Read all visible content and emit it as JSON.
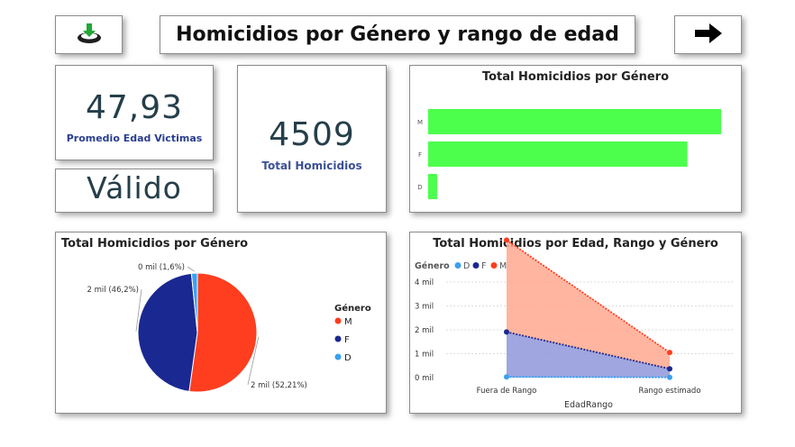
{
  "header": {
    "title": "Homicidios por Género y rango de edad",
    "left_button_icon": "download-icon",
    "right_button_icon": "arrow-right-icon"
  },
  "kpis": {
    "avg_age_value": "47,93",
    "avg_age_label": "Promedio Edad Victimas",
    "status_value": "Válido",
    "total_value": "4509",
    "total_label": "Total Homicidios"
  },
  "colors": {
    "bar_green": "#4cff4c",
    "male_red": "#ff3d1f",
    "female_navy": "#1a2891",
    "d_blue": "#3aa0f0",
    "area_male": "#ffa88f",
    "area_female": "#8f96d9"
  },
  "bar_chart": {
    "title": "Total Homicidios por Género",
    "chart_data": {
      "type": "bar",
      "orientation": "horizontal",
      "categories": [
        "M",
        "F",
        "D"
      ],
      "values": [
        2354,
        2083,
        72
      ],
      "xlim": [
        0,
        2354
      ],
      "grid": false
    }
  },
  "pie_chart": {
    "title": "Total Homicidios por Género",
    "legend_title": "Género",
    "chart_data": {
      "type": "pie",
      "categories": [
        "M",
        "F",
        "D"
      ],
      "values": [
        52.21,
        46.2,
        1.6
      ],
      "labels": [
        "2 mil (52,21%)",
        "2 mil (46,2%)",
        "0 mil (1,6%)"
      ],
      "legend_placement": "right"
    }
  },
  "area_chart": {
    "title": "Total Homicidios por Edad, Rango y Género",
    "legend_title": "Género",
    "xlabel": "EdadRango",
    "chart_data": {
      "type": "area",
      "stacked": true,
      "categories": [
        "Fuera de Rango",
        "Rango estimado"
      ],
      "series": [
        {
          "name": "D",
          "values": [
            30,
            10
          ]
        },
        {
          "name": "F",
          "values": [
            1880,
            360
          ]
        },
        {
          "name": "M",
          "values": [
            3850,
            680
          ]
        }
      ],
      "yticks": [
        "0 mil",
        "1 mil",
        "2 mil",
        "3 mil",
        "4 mil"
      ],
      "ylim": [
        0,
        4000
      ],
      "grid": true,
      "legend_placement": "top-left"
    }
  }
}
